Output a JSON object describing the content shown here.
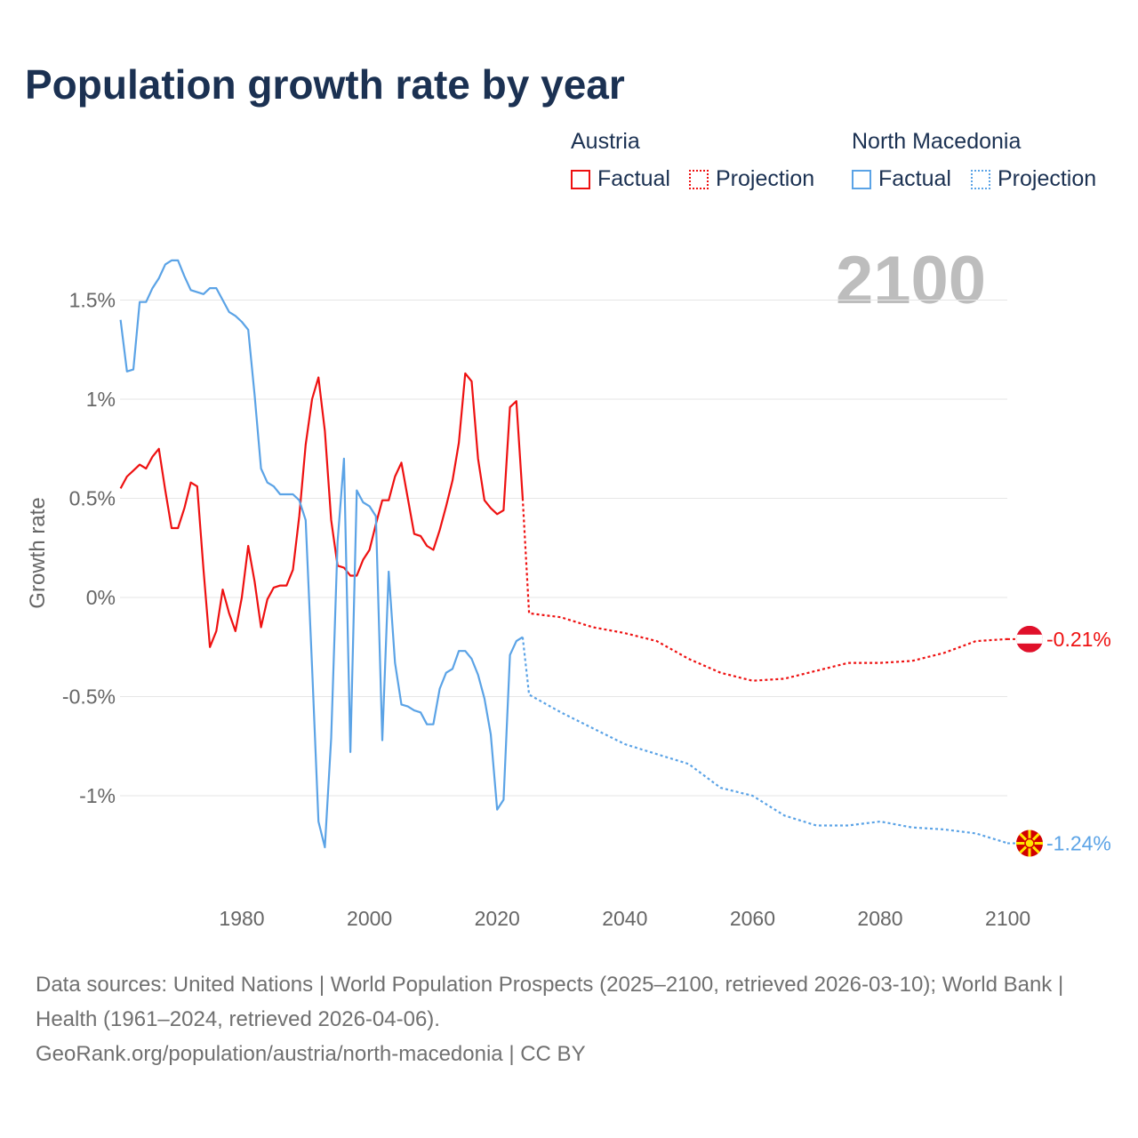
{
  "title": "Population growth rate by year",
  "legend": {
    "groups": [
      {
        "name": "Austria",
        "factual": "Factual",
        "projection": "Projection",
        "color": "#ee1111"
      },
      {
        "name": "North Macedonia",
        "factual": "Factual",
        "projection": "Projection",
        "color": "#5ba3e6"
      }
    ]
  },
  "current_year": "2100",
  "footer": {
    "sources": "Data sources: United Nations | World Population Prospects (2025–2100, retrieved 2026-03-10); World Bank | Health (1961–2024, retrieved 2026-04-06).",
    "url": "GeoRank.org/population/austria/north-macedonia | CC BY"
  },
  "chart_data": {
    "type": "line",
    "title": "Population growth rate by year",
    "xlabel": "",
    "ylabel": "Growth rate",
    "xlim": [
      1961,
      2100
    ],
    "ylim": [
      -1.45,
      1.85
    ],
    "x_ticks": [
      {
        "v": 1980,
        "label": "1980"
      },
      {
        "v": 2000,
        "label": "2000"
      },
      {
        "v": 2020,
        "label": "2020"
      },
      {
        "v": 2040,
        "label": "2040"
      },
      {
        "v": 2060,
        "label": "2060"
      },
      {
        "v": 2080,
        "label": "2080"
      },
      {
        "v": 2100,
        "label": "2100"
      }
    ],
    "y_ticks": [
      {
        "v": 1.5,
        "label": "1.5%"
      },
      {
        "v": 1,
        "label": "1%"
      },
      {
        "v": 0.5,
        "label": "0.5%"
      },
      {
        "v": 0,
        "label": "0%"
      },
      {
        "v": -0.5,
        "label": "-0.5%"
      },
      {
        "v": -1,
        "label": "-1%"
      }
    ],
    "grid": true,
    "legend_position": "top-right",
    "series": [
      {
        "name": "Austria",
        "kind": "factual",
        "color": "#ee1111",
        "x_start": 1961,
        "values": [
          0.55,
          0.61,
          0.64,
          0.67,
          0.65,
          0.71,
          0.75,
          0.54,
          0.35,
          0.35,
          0.45,
          0.58,
          0.56,
          0.14,
          -0.25,
          -0.17,
          0.04,
          -0.08,
          -0.17,
          0.0,
          0.26,
          0.08,
          -0.15,
          -0.01,
          0.05,
          0.06,
          0.06,
          0.14,
          0.41,
          0.77,
          1.0,
          1.11,
          0.84,
          0.39,
          0.16,
          0.15,
          0.11,
          0.11,
          0.19,
          0.24,
          0.37,
          0.49,
          0.49,
          0.61,
          0.68,
          0.5,
          0.32,
          0.31,
          0.26,
          0.24,
          0.34,
          0.46,
          0.59,
          0.78,
          1.13,
          1.09,
          0.7,
          0.49,
          0.45,
          0.42,
          0.44,
          0.96,
          0.99,
          0.5
        ]
      },
      {
        "name": "Austria",
        "kind": "projection",
        "color": "#ee1111",
        "x": [
          2024,
          2025,
          2030,
          2035,
          2040,
          2045,
          2050,
          2055,
          2060,
          2065,
          2070,
          2075,
          2080,
          2085,
          2090,
          2095,
          2100
        ],
        "values": [
          0.5,
          -0.08,
          -0.1,
          -0.15,
          -0.18,
          -0.22,
          -0.31,
          -0.38,
          -0.42,
          -0.41,
          -0.37,
          -0.33,
          -0.33,
          -0.32,
          -0.28,
          -0.22,
          -0.21
        ]
      },
      {
        "name": "North Macedonia",
        "kind": "factual",
        "color": "#5ba3e6",
        "x_start": 1961,
        "values": [
          1.4,
          1.14,
          1.15,
          1.49,
          1.49,
          1.56,
          1.61,
          1.68,
          1.7,
          1.7,
          1.62,
          1.55,
          1.54,
          1.53,
          1.56,
          1.56,
          1.5,
          1.44,
          1.42,
          1.39,
          1.35,
          1.02,
          0.65,
          0.58,
          0.56,
          0.52,
          0.52,
          0.52,
          0.49,
          0.39,
          -0.35,
          -1.13,
          -1.26,
          -0.71,
          0.28,
          0.7,
          -0.78,
          0.54,
          0.48,
          0.46,
          0.41,
          -0.72,
          0.13,
          -0.33,
          -0.54,
          -0.55,
          -0.57,
          -0.58,
          -0.64,
          -0.64,
          -0.46,
          -0.38,
          -0.36,
          -0.27,
          -0.27,
          -0.31,
          -0.39,
          -0.51,
          -0.69,
          -1.07,
          -1.02,
          -0.29,
          -0.22,
          -0.2
        ]
      },
      {
        "name": "North Macedonia",
        "kind": "projection",
        "color": "#5ba3e6",
        "x": [
          2024,
          2025,
          2030,
          2035,
          2040,
          2045,
          2050,
          2055,
          2060,
          2065,
          2070,
          2075,
          2080,
          2085,
          2090,
          2095,
          2100
        ],
        "values": [
          -0.2,
          -0.49,
          -0.58,
          -0.66,
          -0.74,
          -0.79,
          -0.84,
          -0.96,
          -1.0,
          -1.1,
          -1.15,
          -1.15,
          -1.13,
          -1.16,
          -1.17,
          -1.19,
          -1.24
        ]
      }
    ],
    "end_labels": [
      {
        "name": "Austria",
        "value": -0.21,
        "label": "-0.21%",
        "color": "#ee1111"
      },
      {
        "name": "North Macedonia",
        "value": -1.24,
        "label": "-1.24%",
        "color": "#5ba3e6"
      }
    ]
  }
}
